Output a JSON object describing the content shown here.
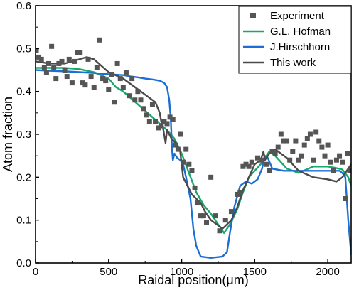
{
  "chart_data": {
    "type": "line",
    "xlabel": "Raidal position(μm)",
    "ylabel": "Atom fraction",
    "xlim": [
      0,
      2160
    ],
    "ylim": [
      0,
      0.6
    ],
    "xticks": [
      0,
      500,
      1000,
      1500,
      2000
    ],
    "yticks": [
      0.0,
      0.1,
      0.2,
      0.3,
      0.4,
      0.5,
      0.6
    ],
    "grid": false,
    "legend_position": "top-right",
    "series": [
      {
        "name": "Experiment",
        "kind": "scatter",
        "color": "#555555",
        "points": [
          [
            5,
            0.495
          ],
          [
            20,
            0.48
          ],
          [
            40,
            0.475
          ],
          [
            60,
            0.455
          ],
          [
            75,
            0.445
          ],
          [
            90,
            0.465
          ],
          [
            110,
            0.505
          ],
          [
            125,
            0.455
          ],
          [
            140,
            0.43
          ],
          [
            160,
            0.465
          ],
          [
            180,
            0.47
          ],
          [
            200,
            0.45
          ],
          [
            215,
            0.435
          ],
          [
            230,
            0.475
          ],
          [
            250,
            0.42
          ],
          [
            265,
            0.47
          ],
          [
            285,
            0.49
          ],
          [
            305,
            0.49
          ],
          [
            320,
            0.42
          ],
          [
            340,
            0.415
          ],
          [
            360,
            0.475
          ],
          [
            380,
            0.435
          ],
          [
            400,
            0.41
          ],
          [
            420,
            0.455
          ],
          [
            440,
            0.52
          ],
          [
            460,
            0.43
          ],
          [
            480,
            0.425
          ],
          [
            500,
            0.405
          ],
          [
            520,
            0.44
          ],
          [
            540,
            0.375
          ],
          [
            560,
            0.465
          ],
          [
            580,
            0.43
          ],
          [
            600,
            0.41
          ],
          [
            620,
            0.445
          ],
          [
            640,
            0.39
          ],
          [
            660,
            0.43
          ],
          [
            680,
            0.38
          ],
          [
            700,
            0.4
          ],
          [
            720,
            0.38
          ],
          [
            740,
            0.36
          ],
          [
            760,
            0.345
          ],
          [
            780,
            0.33
          ],
          [
            800,
            0.37
          ],
          [
            820,
            0.33
          ],
          [
            840,
            0.315
          ],
          [
            860,
            0.32
          ],
          [
            880,
            0.33
          ],
          [
            900,
            0.325
          ],
          [
            920,
            0.34
          ],
          [
            940,
            0.335
          ],
          [
            960,
            0.275
          ],
          [
            975,
            0.265
          ],
          [
            990,
            0.3
          ],
          [
            1010,
            0.235
          ],
          [
            1030,
            0.265
          ],
          [
            1050,
            0.23
          ],
          [
            1070,
            0.215
          ],
          [
            1090,
            0.175
          ],
          [
            1110,
            0.14
          ],
          [
            1130,
            0.11
          ],
          [
            1150,
            0.11
          ],
          [
            1170,
            0.095
          ],
          [
            1200,
            0.2
          ],
          [
            1230,
            0.11
          ],
          [
            1260,
            0.075
          ],
          [
            1300,
            0.1
          ],
          [
            1340,
            0.12
          ],
          [
            1380,
            0.16
          ],
          [
            1400,
            0.165
          ],
          [
            1420,
            0.225
          ],
          [
            1440,
            0.23
          ],
          [
            1460,
            0.225
          ],
          [
            1480,
            0.235
          ],
          [
            1520,
            0.245
          ],
          [
            1550,
            0.24
          ],
          [
            1580,
            0.23
          ],
          [
            1600,
            0.215
          ],
          [
            1620,
            0.26
          ],
          [
            1640,
            0.255
          ],
          [
            1660,
            0.27
          ],
          [
            1680,
            0.3
          ],
          [
            1700,
            0.285
          ],
          [
            1720,
            0.285
          ],
          [
            1740,
            0.24
          ],
          [
            1760,
            0.26
          ],
          [
            1780,
            0.285
          ],
          [
            1800,
            0.24
          ],
          [
            1820,
            0.25
          ],
          [
            1840,
            0.275
          ],
          [
            1860,
            0.29
          ],
          [
            1880,
            0.3
          ],
          [
            1900,
            0.24
          ],
          [
            1920,
            0.305
          ],
          [
            1940,
            0.285
          ],
          [
            1960,
            0.27
          ],
          [
            1980,
            0.25
          ],
          [
            2000,
            0.275
          ],
          [
            2020,
            0.235
          ],
          [
            2040,
            0.215
          ],
          [
            2060,
            0.24
          ],
          [
            2080,
            0.25
          ],
          [
            2100,
            0.235
          ],
          [
            2120,
            0.15
          ],
          [
            2135,
            0.255
          ],
          [
            2150,
            0.215
          ]
        ]
      },
      {
        "name": "G.L. Hofman",
        "kind": "line",
        "color": "#1aa86a",
        "points": [
          [
            0,
            0.455
          ],
          [
            100,
            0.455
          ],
          [
            200,
            0.455
          ],
          [
            300,
            0.452
          ],
          [
            400,
            0.445
          ],
          [
            500,
            0.43
          ],
          [
            550,
            0.41
          ],
          [
            600,
            0.4
          ],
          [
            650,
            0.385
          ],
          [
            700,
            0.37
          ],
          [
            750,
            0.355
          ],
          [
            800,
            0.34
          ],
          [
            850,
            0.325
          ],
          [
            900,
            0.31
          ],
          [
            950,
            0.29
          ],
          [
            1000,
            0.255
          ],
          [
            1050,
            0.21
          ],
          [
            1100,
            0.165
          ],
          [
            1150,
            0.135
          ],
          [
            1200,
            0.115
          ],
          [
            1250,
            0.09
          ],
          [
            1290,
            0.07
          ],
          [
            1330,
            0.09
          ],
          [
            1380,
            0.125
          ],
          [
            1420,
            0.165
          ],
          [
            1460,
            0.2
          ],
          [
            1500,
            0.215
          ],
          [
            1540,
            0.23
          ],
          [
            1570,
            0.245
          ],
          [
            1600,
            0.26
          ],
          [
            1640,
            0.25
          ],
          [
            1680,
            0.235
          ],
          [
            1720,
            0.22
          ],
          [
            1800,
            0.21
          ],
          [
            1900,
            0.225
          ],
          [
            2000,
            0.225
          ],
          [
            2050,
            0.222
          ],
          [
            2100,
            0.218
          ],
          [
            2140,
            0.2
          ],
          [
            2160,
            0.18
          ]
        ]
      },
      {
        "name": "J.Hirschhorn",
        "kind": "line",
        "color": "#1a6fd6",
        "points": [
          [
            0,
            0.45
          ],
          [
            100,
            0.448
          ],
          [
            200,
            0.447
          ],
          [
            300,
            0.445
          ],
          [
            400,
            0.443
          ],
          [
            500,
            0.44
          ],
          [
            600,
            0.438
          ],
          [
            650,
            0.435
          ],
          [
            700,
            0.433
          ],
          [
            750,
            0.43
          ],
          [
            800,
            0.428
          ],
          [
            850,
            0.425
          ],
          [
            880,
            0.42
          ],
          [
            900,
            0.41
          ],
          [
            915,
            0.38
          ],
          [
            925,
            0.34
          ],
          [
            935,
            0.26
          ],
          [
            940,
            0.24
          ],
          [
            950,
            0.255
          ],
          [
            970,
            0.245
          ],
          [
            990,
            0.24
          ],
          [
            1010,
            0.23
          ],
          [
            1030,
            0.2
          ],
          [
            1060,
            0.15
          ],
          [
            1080,
            0.08
          ],
          [
            1100,
            0.04
          ],
          [
            1130,
            0.015
          ],
          [
            1200,
            0.012
          ],
          [
            1280,
            0.015
          ],
          [
            1310,
            0.025
          ],
          [
            1330,
            0.07
          ],
          [
            1360,
            0.13
          ],
          [
            1400,
            0.18
          ],
          [
            1440,
            0.19
          ],
          [
            1480,
            0.185
          ],
          [
            1520,
            0.195
          ],
          [
            1550,
            0.22
          ],
          [
            1570,
            0.25
          ],
          [
            1590,
            0.245
          ],
          [
            1620,
            0.22
          ],
          [
            1700,
            0.215
          ],
          [
            1800,
            0.215
          ],
          [
            1900,
            0.215
          ],
          [
            2000,
            0.215
          ],
          [
            2080,
            0.215
          ],
          [
            2100,
            0.21
          ],
          [
            2120,
            0.2
          ],
          [
            2140,
            0.1
          ],
          [
            2160,
            0.02
          ]
        ]
      },
      {
        "name": "This work",
        "kind": "line",
        "color": "#4a4a4a",
        "points": [
          [
            0,
            0.47
          ],
          [
            100,
            0.465
          ],
          [
            200,
            0.465
          ],
          [
            300,
            0.475
          ],
          [
            350,
            0.48
          ],
          [
            400,
            0.475
          ],
          [
            450,
            0.46
          ],
          [
            500,
            0.445
          ],
          [
            600,
            0.43
          ],
          [
            700,
            0.405
          ],
          [
            780,
            0.385
          ],
          [
            820,
            0.375
          ],
          [
            850,
            0.35
          ],
          [
            860,
            0.33
          ],
          [
            870,
            0.32
          ],
          [
            880,
            0.3
          ],
          [
            890,
            0.28
          ],
          [
            900,
            0.31
          ],
          [
            915,
            0.3
          ],
          [
            930,
            0.29
          ],
          [
            960,
            0.28
          ],
          [
            990,
            0.26
          ],
          [
            1010,
            0.2
          ],
          [
            1040,
            0.18
          ],
          [
            1070,
            0.16
          ],
          [
            1100,
            0.15
          ],
          [
            1130,
            0.14
          ],
          [
            1160,
            0.12
          ],
          [
            1200,
            0.1
          ],
          [
            1240,
            0.09
          ],
          [
            1280,
            0.08
          ],
          [
            1310,
            0.09
          ],
          [
            1340,
            0.1
          ],
          [
            1380,
            0.13
          ],
          [
            1420,
            0.17
          ],
          [
            1460,
            0.2
          ],
          [
            1500,
            0.23
          ],
          [
            1540,
            0.24
          ],
          [
            1560,
            0.26
          ],
          [
            1570,
            0.24
          ],
          [
            1600,
            0.255
          ],
          [
            1640,
            0.265
          ],
          [
            1680,
            0.255
          ],
          [
            1720,
            0.245
          ],
          [
            1800,
            0.215
          ],
          [
            1900,
            0.2
          ],
          [
            2000,
            0.195
          ],
          [
            2060,
            0.19
          ],
          [
            2100,
            0.2
          ],
          [
            2160,
            0.23
          ]
        ]
      }
    ]
  }
}
